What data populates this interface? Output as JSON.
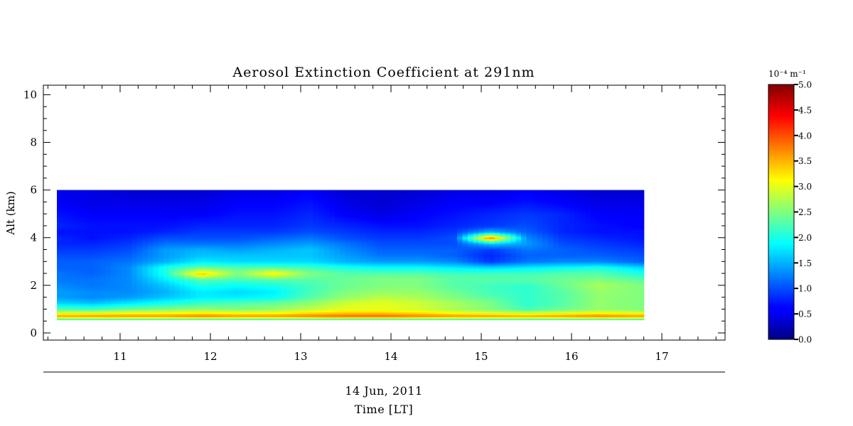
{
  "chart_data": {
    "type": "heatmap",
    "title": "Aerosol Extinction Coefficient at 291nm",
    "ylabel": "Alt (km)",
    "date_label": "14 Jun, 2011",
    "xlabel": "Time [LT]",
    "xlim": [
      10.15,
      17.7
    ],
    "ylim": [
      -0.3,
      10.4
    ],
    "x_ticks": [
      11,
      12,
      13,
      14,
      15,
      16,
      17
    ],
    "y_ticks": [
      0,
      2,
      4,
      6,
      8,
      10
    ],
    "colorbar": {
      "unit_label": "10⁻⁴ m⁻¹",
      "range": [
        0.0,
        5.0
      ],
      "ticks": [
        "0.0",
        "0.5",
        "1.0",
        "1.5",
        "2.0",
        "2.5",
        "3.0",
        "3.5",
        "4.0",
        "4.5",
        "5.0"
      ],
      "colormap": "jet"
    },
    "data_extent": {
      "x": [
        10.3,
        16.8
      ],
      "y": [
        0.55,
        6.0
      ]
    },
    "x": [
      10.3,
      10.7,
      11.1,
      11.5,
      11.9,
      12.3,
      12.7,
      13.1,
      13.5,
      13.9,
      14.3,
      14.7,
      15.1,
      15.5,
      15.9,
      16.3,
      16.8
    ],
    "y": [
      0.55,
      0.7,
      0.85,
      1.0,
      1.25,
      1.5,
      1.75,
      2.0,
      2.25,
      2.5,
      2.75,
      3.0,
      3.25,
      3.5,
      3.75,
      4.0,
      4.25,
      4.5,
      5.0,
      5.5,
      6.0
    ],
    "z": [
      [
        1.9,
        1.9,
        1.9,
        1.9,
        1.9,
        1.9,
        1.9,
        1.9,
        1.9,
        1.9,
        1.9,
        1.9,
        1.9,
        1.9,
        1.9,
        1.9,
        1.9
      ],
      [
        3.6,
        3.7,
        3.7,
        3.7,
        3.8,
        3.7,
        3.7,
        3.8,
        3.9,
        3.9,
        3.8,
        3.7,
        3.7,
        3.6,
        3.7,
        3.8,
        3.7
      ],
      [
        3.0,
        3.0,
        3.1,
        3.1,
        3.2,
        3.1,
        3.1,
        3.3,
        3.4,
        3.4,
        3.3,
        3.1,
        3.0,
        2.9,
        3.0,
        3.1,
        3.0
      ],
      [
        2.3,
        2.2,
        2.4,
        2.5,
        2.6,
        2.5,
        2.6,
        2.8,
        3.0,
        3.0,
        2.9,
        2.7,
        2.5,
        2.2,
        2.4,
        2.6,
        2.5
      ],
      [
        1.7,
        1.6,
        1.8,
        2.0,
        2.2,
        2.3,
        2.4,
        2.6,
        2.9,
        3.0,
        2.9,
        2.7,
        2.5,
        2.1,
        2.3,
        2.6,
        2.5
      ],
      [
        1.4,
        1.3,
        1.4,
        1.6,
        1.8,
        1.8,
        1.9,
        2.3,
        2.6,
        2.8,
        2.7,
        2.5,
        2.3,
        2.1,
        2.3,
        2.6,
        2.5
      ],
      [
        1.4,
        1.3,
        1.3,
        1.5,
        1.8,
        1.7,
        1.8,
        2.2,
        2.5,
        2.6,
        2.6,
        2.4,
        2.2,
        2.1,
        2.3,
        2.6,
        2.5
      ],
      [
        1.3,
        1.2,
        1.3,
        1.6,
        2.0,
        1.9,
        2.0,
        2.2,
        2.4,
        2.5,
        2.5,
        2.3,
        2.2,
        2.1,
        2.4,
        2.7,
        2.5
      ],
      [
        1.2,
        1.2,
        1.3,
        1.8,
        2.3,
        2.2,
        2.3,
        2.3,
        2.4,
        2.5,
        2.5,
        2.3,
        2.3,
        2.3,
        2.4,
        2.5,
        2.3
      ],
      [
        1.2,
        1.1,
        1.3,
        2.0,
        3.4,
        2.5,
        3.2,
        2.5,
        2.3,
        2.3,
        2.3,
        2.2,
        2.2,
        2.2,
        2.3,
        2.3,
        2.0
      ],
      [
        1.1,
        1.1,
        1.3,
        2.0,
        2.4,
        2.3,
        2.3,
        2.2,
        2.0,
        1.9,
        1.9,
        1.8,
        1.7,
        1.8,
        1.9,
        2.0,
        1.7
      ],
      [
        1.1,
        1.1,
        1.2,
        1.5,
        1.8,
        1.7,
        1.7,
        1.7,
        1.5,
        1.4,
        1.4,
        1.3,
        0.9,
        1.2,
        1.3,
        1.3,
        1.1
      ],
      [
        1.0,
        1.0,
        1.1,
        1.4,
        1.6,
        1.6,
        1.6,
        1.6,
        1.4,
        1.2,
        1.2,
        1.1,
        0.8,
        1.1,
        1.1,
        1.1,
        1.0
      ],
      [
        0.9,
        0.9,
        1.0,
        1.4,
        1.5,
        1.4,
        1.5,
        1.6,
        1.3,
        1.1,
        1.1,
        1.1,
        0.9,
        1.2,
        1.1,
        1.0,
        0.9
      ],
      [
        0.8,
        0.8,
        0.9,
        1.2,
        1.2,
        1.2,
        1.3,
        1.4,
        1.2,
        1.0,
        1.0,
        1.0,
        1.6,
        1.4,
        1.0,
        0.9,
        0.8
      ],
      [
        0.8,
        0.7,
        0.8,
        1.0,
        1.0,
        1.0,
        1.1,
        1.2,
        1.0,
        0.9,
        0.9,
        1.0,
        3.8,
        1.3,
        0.9,
        0.8,
        0.7
      ],
      [
        0.7,
        0.7,
        0.7,
        0.8,
        0.9,
        0.9,
        0.9,
        1.0,
        0.9,
        0.8,
        0.8,
        0.9,
        1.5,
        1.1,
        0.8,
        0.7,
        0.7
      ],
      [
        0.8,
        0.7,
        0.7,
        0.7,
        0.8,
        0.8,
        0.8,
        0.9,
        0.8,
        0.7,
        0.7,
        0.8,
        0.9,
        1.0,
        0.8,
        0.7,
        0.6
      ],
      [
        0.7,
        0.6,
        0.6,
        0.6,
        0.6,
        0.7,
        0.7,
        0.8,
        0.6,
        0.5,
        0.6,
        0.7,
        0.8,
        0.9,
        0.8,
        0.6,
        0.6
      ],
      [
        0.6,
        0.5,
        0.5,
        0.5,
        0.5,
        0.6,
        0.6,
        0.7,
        0.5,
        0.4,
        0.5,
        0.6,
        0.6,
        0.7,
        0.6,
        0.5,
        0.5
      ],
      [
        0.5,
        0.5,
        0.4,
        0.4,
        0.4,
        0.5,
        0.5,
        0.6,
        0.4,
        0.4,
        0.4,
        0.5,
        0.5,
        0.6,
        0.5,
        0.4,
        0.4
      ]
    ]
  }
}
